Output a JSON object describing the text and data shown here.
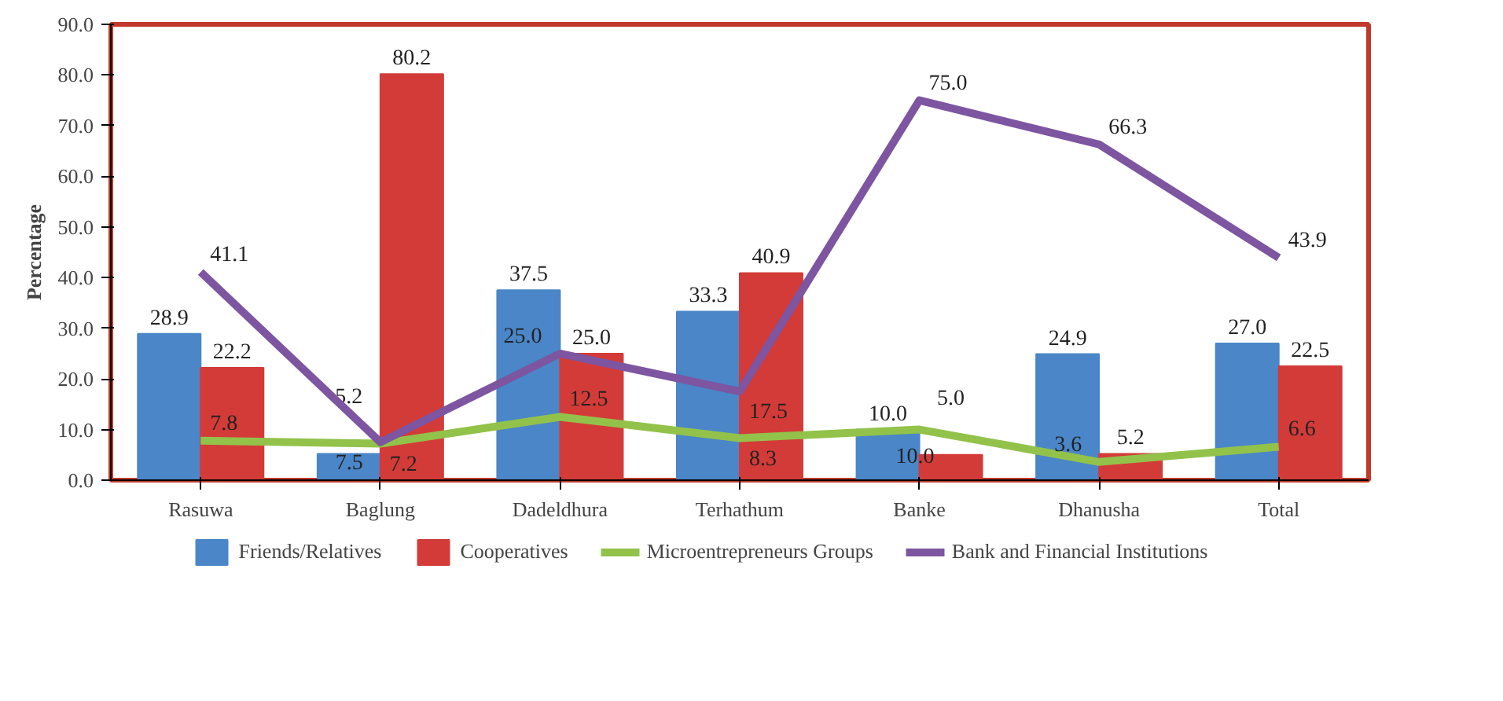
{
  "chart_data": {
    "type": "bar",
    "ylabel": "Percentage",
    "categories": [
      "Rasuwa",
      "Baglung",
      "Dadeldhura",
      "Terhathum",
      "Banke",
      "Dhanusha",
      "Total"
    ],
    "series": [
      {
        "name": "Friends/Relatives",
        "color": "#4a86c8",
        "values": [
          28.9,
          5.2,
          37.5,
          33.3,
          10.0,
          24.9,
          27.0
        ],
        "value_labels": [
          "28.9",
          "5.2",
          "37.5",
          "33.3",
          "10.0",
          "24.9",
          "27.0"
        ]
      },
      {
        "name": "Cooperatives",
        "color": "#d33b38",
        "values": [
          22.2,
          80.2,
          25.0,
          40.9,
          5.0,
          5.2,
          22.5
        ],
        "value_labels": [
          "22.2",
          "80.2",
          "25.0",
          "40.9",
          "5.0",
          "5.2",
          "22.5"
        ]
      },
      {
        "name": "Microentrepreneurs Groups",
        "color": "#92c24a",
        "type": "line",
        "values": [
          7.8,
          7.2,
          12.5,
          8.3,
          10.0,
          3.6,
          6.6
        ],
        "value_labels": [
          "7.8",
          "7.2",
          "12.5",
          "8.3",
          "10.0",
          "3.6",
          "6.6"
        ]
      },
      {
        "name": "Bank and Financial Institutions",
        "color": "#7d55a0",
        "type": "line",
        "values": [
          41.1,
          7.5,
          25.0,
          17.5,
          75.0,
          66.3,
          43.9
        ],
        "value_labels": [
          "41.1",
          "7.5",
          "25.0",
          "17.5",
          "75.0",
          "66.3",
          "43.9"
        ]
      }
    ],
    "ylim": [
      0,
      90
    ],
    "yticks": [
      {
        "value": 0,
        "label": "0.0"
      },
      {
        "value": 10,
        "label": "10.0"
      },
      {
        "value": 20,
        "label": "20.0"
      },
      {
        "value": 30,
        "label": "30.0"
      },
      {
        "value": 40,
        "label": "40.0"
      },
      {
        "value": 50,
        "label": "50.0"
      },
      {
        "value": 60,
        "label": "60.0"
      },
      {
        "value": 70,
        "label": "70.0"
      },
      {
        "value": 80,
        "label": "80.0"
      },
      {
        "value": 90,
        "label": "90.0"
      }
    ],
    "grid": false,
    "legend": "bottom"
  }
}
